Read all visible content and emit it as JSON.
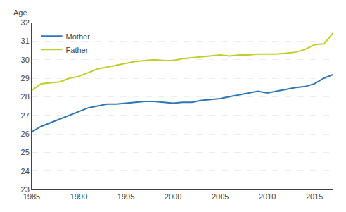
{
  "chart_data": {
    "type": "line",
    "ylabel": "Age",
    "x": [
      1985,
      1986,
      1987,
      1988,
      1989,
      1990,
      1991,
      1992,
      1993,
      1994,
      1995,
      1996,
      1997,
      1998,
      1999,
      2000,
      2001,
      2002,
      2003,
      2004,
      2005,
      2006,
      2007,
      2008,
      2009,
      2010,
      2011,
      2012,
      2013,
      2014,
      2015,
      2016,
      2017
    ],
    "series": [
      {
        "name": "Mother",
        "color": "#2e75b6",
        "values": [
          26.1,
          26.4,
          26.6,
          26.8,
          27.0,
          27.2,
          27.4,
          27.5,
          27.6,
          27.6,
          27.65,
          27.7,
          27.75,
          27.75,
          27.7,
          27.65,
          27.7,
          27.7,
          27.8,
          27.85,
          27.9,
          28.0,
          28.1,
          28.2,
          28.3,
          28.2,
          28.3,
          28.4,
          28.5,
          28.55,
          28.7,
          29.0,
          29.2
        ]
      },
      {
        "name": "Father",
        "color": "#bfce2a",
        "values": [
          28.35,
          28.7,
          28.75,
          28.8,
          29.0,
          29.1,
          29.3,
          29.5,
          29.6,
          29.7,
          29.8,
          29.9,
          29.95,
          30.0,
          29.95,
          29.95,
          30.05,
          30.1,
          30.15,
          30.2,
          30.25,
          30.2,
          30.25,
          30.25,
          30.3,
          30.3,
          30.3,
          30.35,
          30.4,
          30.55,
          30.8,
          30.85,
          31.45
        ]
      }
    ],
    "xlim": [
      1985,
      2017
    ],
    "ylim": [
      23,
      32
    ],
    "xticks": [
      1985,
      1990,
      1995,
      2000,
      2005,
      2010,
      2015
    ],
    "yticks": [
      23,
      24,
      25,
      26,
      27,
      28,
      29,
      30,
      31,
      32
    ],
    "grid": "y",
    "legend": "upper left"
  }
}
